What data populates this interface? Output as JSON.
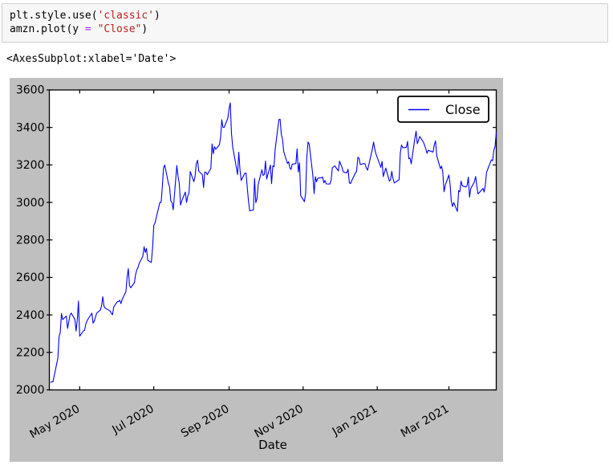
{
  "code_cell": {
    "token_colors": {
      "plain": "#000000",
      "string": "#ba2121",
      "operator": "#aa22ff"
    },
    "lines": [
      {
        "tokens": [
          {
            "text": "plt.style.use(",
            "type": "plain"
          },
          {
            "text": "'classic'",
            "type": "string"
          },
          {
            "text": ")",
            "type": "plain"
          }
        ]
      },
      {
        "tokens": [
          {
            "text": "amzn.plot(y ",
            "type": "plain"
          },
          {
            "text": "=",
            "type": "operator"
          },
          {
            "text": " ",
            "type": "plain"
          },
          {
            "text": "\"Close\"",
            "type": "string"
          },
          {
            "text": ")",
            "type": "plain"
          }
        ]
      }
    ]
  },
  "output_text": "<AxesSubplot:xlabel='Date'>",
  "chart_data": {
    "type": "line",
    "title": "",
    "xlabel": "Date",
    "ylabel": "",
    "ylim": [
      2000,
      3600
    ],
    "yticks": [
      2000,
      2200,
      2400,
      2600,
      2800,
      3000,
      3200,
      3400,
      3600
    ],
    "x_range": [
      "2020-04-06",
      "2021-04-09"
    ],
    "xticks": [
      {
        "date": "2020-05-01",
        "label": "May 2020"
      },
      {
        "date": "2020-07-01",
        "label": "Jul 2020"
      },
      {
        "date": "2020-09-01",
        "label": "Sep 2020"
      },
      {
        "date": "2020-11-01",
        "label": "Nov 2020"
      },
      {
        "date": "2021-01-01",
        "label": "Jan 2021"
      },
      {
        "date": "2021-03-01",
        "label": "Mar 2021"
      }
    ],
    "grid": false,
    "legend": {
      "label": "Close",
      "position": "upper right"
    },
    "style": {
      "figure_bg": "#bfbfbf",
      "plot_bg": "#ffffff",
      "line_color": "#0000ff",
      "spine_color": "#000000"
    },
    "series": [
      {
        "name": "Close",
        "points": [
          [
            "2020-04-07",
            2040
          ],
          [
            "2020-04-08",
            2043
          ],
          [
            "2020-04-09",
            2043
          ],
          [
            "2020-04-13",
            2169
          ],
          [
            "2020-04-14",
            2283
          ],
          [
            "2020-04-15",
            2307
          ],
          [
            "2020-04-16",
            2408
          ],
          [
            "2020-04-17",
            2375
          ],
          [
            "2020-04-20",
            2394
          ],
          [
            "2020-04-21",
            2328
          ],
          [
            "2020-04-22",
            2363
          ],
          [
            "2020-04-23",
            2399
          ],
          [
            "2020-04-24",
            2410
          ],
          [
            "2020-04-27",
            2376
          ],
          [
            "2020-04-28",
            2314
          ],
          [
            "2020-04-29",
            2372
          ],
          [
            "2020-04-30",
            2474
          ],
          [
            "2020-05-01",
            2286
          ],
          [
            "2020-05-04",
            2315
          ],
          [
            "2020-05-05",
            2317
          ],
          [
            "2020-05-06",
            2351
          ],
          [
            "2020-05-07",
            2367
          ],
          [
            "2020-05-08",
            2379
          ],
          [
            "2020-05-11",
            2409
          ],
          [
            "2020-05-12",
            2356
          ],
          [
            "2020-05-13",
            2367
          ],
          [
            "2020-05-14",
            2388
          ],
          [
            "2020-05-15",
            2409
          ],
          [
            "2020-05-18",
            2426
          ],
          [
            "2020-05-19",
            2449
          ],
          [
            "2020-05-20",
            2497
          ],
          [
            "2020-05-21",
            2446
          ],
          [
            "2020-05-22",
            2436
          ],
          [
            "2020-05-26",
            2421
          ],
          [
            "2020-05-27",
            2410
          ],
          [
            "2020-05-28",
            2401
          ],
          [
            "2020-05-29",
            2442
          ],
          [
            "2020-06-01",
            2471
          ],
          [
            "2020-06-02",
            2472
          ],
          [
            "2020-06-03",
            2478
          ],
          [
            "2020-06-04",
            2460
          ],
          [
            "2020-06-05",
            2483
          ],
          [
            "2020-06-08",
            2524
          ],
          [
            "2020-06-09",
            2600
          ],
          [
            "2020-06-10",
            2647
          ],
          [
            "2020-06-11",
            2557
          ],
          [
            "2020-06-12",
            2545
          ],
          [
            "2020-06-15",
            2572
          ],
          [
            "2020-06-16",
            2615
          ],
          [
            "2020-06-17",
            2640
          ],
          [
            "2020-06-18",
            2653
          ],
          [
            "2020-06-19",
            2675
          ],
          [
            "2020-06-22",
            2713
          ],
          [
            "2020-06-23",
            2764
          ],
          [
            "2020-06-24",
            2734
          ],
          [
            "2020-06-25",
            2754
          ],
          [
            "2020-06-26",
            2692
          ],
          [
            "2020-06-29",
            2680
          ],
          [
            "2020-06-30",
            2759
          ],
          [
            "2020-07-01",
            2878
          ],
          [
            "2020-07-02",
            2890
          ],
          [
            "2020-07-06",
            3000
          ],
          [
            "2020-07-07",
            3000
          ],
          [
            "2020-07-08",
            3082
          ],
          [
            "2020-07-09",
            3183
          ],
          [
            "2020-07-10",
            3200
          ],
          [
            "2020-07-13",
            3104
          ],
          [
            "2020-07-14",
            3084
          ],
          [
            "2020-07-15",
            3008
          ],
          [
            "2020-07-16",
            2999
          ],
          [
            "2020-07-17",
            2961
          ],
          [
            "2020-07-20",
            3197
          ],
          [
            "2020-07-21",
            3138
          ],
          [
            "2020-07-22",
            3100
          ],
          [
            "2020-07-23",
            2986
          ],
          [
            "2020-07-24",
            3008
          ],
          [
            "2020-07-27",
            3055
          ],
          [
            "2020-07-28",
            3000
          ],
          [
            "2020-07-29",
            3033
          ],
          [
            "2020-07-30",
            3051
          ],
          [
            "2020-07-31",
            3165
          ],
          [
            "2020-08-03",
            3111
          ],
          [
            "2020-08-04",
            3138
          ],
          [
            "2020-08-05",
            3205
          ],
          [
            "2020-08-06",
            3225
          ],
          [
            "2020-08-07",
            3167
          ],
          [
            "2020-08-10",
            3148
          ],
          [
            "2020-08-11",
            3080
          ],
          [
            "2020-08-12",
            3162
          ],
          [
            "2020-08-13",
            3161
          ],
          [
            "2020-08-14",
            3148
          ],
          [
            "2020-08-17",
            3182
          ],
          [
            "2020-08-18",
            3312
          ],
          [
            "2020-08-19",
            3260
          ],
          [
            "2020-08-20",
            3297
          ],
          [
            "2020-08-21",
            3284
          ],
          [
            "2020-08-24",
            3307
          ],
          [
            "2020-08-25",
            3346
          ],
          [
            "2020-08-26",
            3441
          ],
          [
            "2020-08-27",
            3400
          ],
          [
            "2020-08-28",
            3401
          ],
          [
            "2020-08-31",
            3450
          ],
          [
            "2020-09-01",
            3500
          ],
          [
            "2020-09-02",
            3531
          ],
          [
            "2020-09-03",
            3368
          ],
          [
            "2020-09-04",
            3294
          ],
          [
            "2020-09-08",
            3149
          ],
          [
            "2020-09-09",
            3268
          ],
          [
            "2020-09-10",
            3175
          ],
          [
            "2020-09-11",
            3117
          ],
          [
            "2020-09-14",
            3156
          ],
          [
            "2020-09-15",
            3156
          ],
          [
            "2020-09-16",
            3078
          ],
          [
            "2020-09-17",
            3008
          ],
          [
            "2020-09-18",
            2955
          ],
          [
            "2020-09-21",
            2960
          ],
          [
            "2020-09-22",
            3128
          ],
          [
            "2020-09-23",
            2999
          ],
          [
            "2020-09-24",
            3019
          ],
          [
            "2020-09-25",
            3095
          ],
          [
            "2020-09-28",
            3174
          ],
          [
            "2020-09-29",
            3144
          ],
          [
            "2020-09-30",
            3149
          ],
          [
            "2020-10-01",
            3221
          ],
          [
            "2020-10-02",
            3125
          ],
          [
            "2020-10-05",
            3199
          ],
          [
            "2020-10-06",
            3100
          ],
          [
            "2020-10-07",
            3195
          ],
          [
            "2020-10-08",
            3190
          ],
          [
            "2020-10-09",
            3286
          ],
          [
            "2020-10-12",
            3442
          ],
          [
            "2020-10-13",
            3444
          ],
          [
            "2020-10-14",
            3363
          ],
          [
            "2020-10-15",
            3338
          ],
          [
            "2020-10-16",
            3272
          ],
          [
            "2020-10-19",
            3208
          ],
          [
            "2020-10-20",
            3217
          ],
          [
            "2020-10-21",
            3185
          ],
          [
            "2020-10-22",
            3176
          ],
          [
            "2020-10-23",
            3204
          ],
          [
            "2020-10-26",
            3207
          ],
          [
            "2020-10-27",
            3286
          ],
          [
            "2020-10-28",
            3162
          ],
          [
            "2020-10-29",
            3211
          ],
          [
            "2020-10-30",
            3036
          ],
          [
            "2020-11-02",
            3004
          ],
          [
            "2020-11-03",
            3048
          ],
          [
            "2020-11-04",
            3241
          ],
          [
            "2020-11-05",
            3322
          ],
          [
            "2020-11-06",
            3311
          ],
          [
            "2020-11-09",
            3144
          ],
          [
            "2020-11-10",
            3047
          ],
          [
            "2020-11-11",
            3137
          ],
          [
            "2020-11-12",
            3110
          ],
          [
            "2020-11-13",
            3129
          ],
          [
            "2020-11-16",
            3132
          ],
          [
            "2020-11-17",
            3135
          ],
          [
            "2020-11-18",
            3105
          ],
          [
            "2020-11-19",
            3117
          ],
          [
            "2020-11-20",
            3099
          ],
          [
            "2020-11-23",
            3098
          ],
          [
            "2020-11-24",
            3118
          ],
          [
            "2020-11-25",
            3185
          ],
          [
            "2020-11-27",
            3195
          ],
          [
            "2020-11-30",
            3168
          ],
          [
            "2020-12-01",
            3220
          ],
          [
            "2020-12-02",
            3203
          ],
          [
            "2020-12-03",
            3187
          ],
          [
            "2020-12-04",
            3163
          ],
          [
            "2020-12-07",
            3158
          ],
          [
            "2020-12-08",
            3177
          ],
          [
            "2020-12-09",
            3105
          ],
          [
            "2020-12-10",
            3101
          ],
          [
            "2020-12-11",
            3116
          ],
          [
            "2020-12-14",
            3157
          ],
          [
            "2020-12-15",
            3165
          ],
          [
            "2020-12-16",
            3241
          ],
          [
            "2020-12-17",
            3236
          ],
          [
            "2020-12-18",
            3202
          ],
          [
            "2020-12-21",
            3207
          ],
          [
            "2020-12-22",
            3206
          ],
          [
            "2020-12-23",
            3185
          ],
          [
            "2020-12-24",
            3172
          ],
          [
            "2020-12-28",
            3284
          ],
          [
            "2020-12-29",
            3322
          ],
          [
            "2020-12-30",
            3285
          ],
          [
            "2020-12-31",
            3257
          ],
          [
            "2021-01-04",
            3187
          ],
          [
            "2021-01-05",
            3219
          ],
          [
            "2021-01-06",
            3138
          ],
          [
            "2021-01-07",
            3162
          ],
          [
            "2021-01-08",
            3183
          ],
          [
            "2021-01-11",
            3114
          ],
          [
            "2021-01-12",
            3121
          ],
          [
            "2021-01-13",
            3166
          ],
          [
            "2021-01-14",
            3127
          ],
          [
            "2021-01-15",
            3104
          ],
          [
            "2021-01-19",
            3121
          ],
          [
            "2021-01-20",
            3263
          ],
          [
            "2021-01-21",
            3306
          ],
          [
            "2021-01-22",
            3292
          ],
          [
            "2021-01-25",
            3294
          ],
          [
            "2021-01-26",
            3326
          ],
          [
            "2021-01-27",
            3233
          ],
          [
            "2021-01-28",
            3237
          ],
          [
            "2021-01-29",
            3206
          ],
          [
            "2021-02-01",
            3343
          ],
          [
            "2021-02-02",
            3380
          ],
          [
            "2021-02-03",
            3313
          ],
          [
            "2021-02-04",
            3331
          ],
          [
            "2021-02-05",
            3352
          ],
          [
            "2021-02-08",
            3322
          ],
          [
            "2021-02-09",
            3305
          ],
          [
            "2021-02-10",
            3286
          ],
          [
            "2021-02-11",
            3262
          ],
          [
            "2021-02-12",
            3278
          ],
          [
            "2021-02-16",
            3269
          ],
          [
            "2021-02-17",
            3308
          ],
          [
            "2021-02-18",
            3328
          ],
          [
            "2021-02-19",
            3250
          ],
          [
            "2021-02-22",
            3180
          ],
          [
            "2021-02-23",
            3194
          ],
          [
            "2021-02-24",
            3159
          ],
          [
            "2021-02-25",
            3057
          ],
          [
            "2021-02-26",
            3092
          ],
          [
            "2021-03-01",
            3146
          ],
          [
            "2021-03-02",
            3094
          ],
          [
            "2021-03-03",
            3005
          ],
          [
            "2021-03-04",
            2978
          ],
          [
            "2021-03-05",
            3000
          ],
          [
            "2021-03-08",
            2952
          ],
          [
            "2021-03-09",
            3063
          ],
          [
            "2021-03-10",
            3057
          ],
          [
            "2021-03-11",
            3114
          ],
          [
            "2021-03-12",
            3089
          ],
          [
            "2021-03-15",
            3082
          ],
          [
            "2021-03-16",
            3091
          ],
          [
            "2021-03-17",
            3135
          ],
          [
            "2021-03-18",
            3028
          ],
          [
            "2021-03-19",
            3074
          ],
          [
            "2021-03-22",
            3110
          ],
          [
            "2021-03-23",
            3138
          ],
          [
            "2021-03-24",
            3087
          ],
          [
            "2021-03-25",
            3046
          ],
          [
            "2021-03-26",
            3052
          ],
          [
            "2021-03-29",
            3075
          ],
          [
            "2021-03-30",
            3055
          ],
          [
            "2021-03-31",
            3094
          ],
          [
            "2021-04-01",
            3161
          ],
          [
            "2021-04-05",
            3227
          ],
          [
            "2021-04-06",
            3223
          ],
          [
            "2021-04-07",
            3279
          ],
          [
            "2021-04-08",
            3299
          ],
          [
            "2021-04-09",
            3372
          ]
        ]
      }
    ]
  }
}
